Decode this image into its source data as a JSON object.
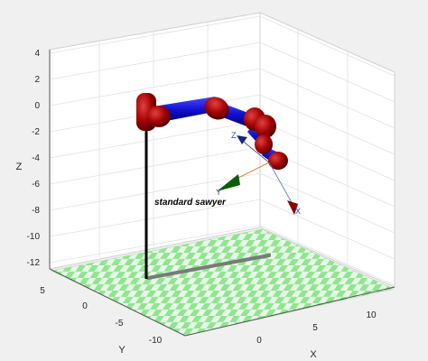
{
  "chart_data": {
    "type": "3d-robot-plot",
    "axes": {
      "x": {
        "label": "X",
        "ticks": [
          "0",
          "5",
          "10"
        ],
        "range": [
          -5,
          12
        ]
      },
      "y": {
        "label": "Y",
        "ticks": [
          "5",
          "0",
          "-5",
          "-10"
        ],
        "range": [
          -12,
          6
        ]
      },
      "z": {
        "label": "Z",
        "ticks": [
          "4",
          "2",
          "0",
          "-2",
          "-4",
          "-6",
          "-8",
          "-10",
          "-12"
        ],
        "range": [
          -13,
          4
        ]
      }
    },
    "grid": true,
    "floor": {
      "pattern": "checkerboard",
      "colors": [
        "#8fe68f",
        "#e8f7e8"
      ]
    },
    "robot": {
      "name": "standard sawyer",
      "link_color": "#1010d0",
      "joint_color": "#a00000",
      "pedestal_color": "#000000"
    },
    "tool_frame": {
      "labels": {
        "x": "X",
        "y": "Y",
        "z": "Z"
      },
      "colors": {
        "x": "#8b0000",
        "y": "#0b5d0b",
        "z": "#1a237e"
      }
    }
  }
}
